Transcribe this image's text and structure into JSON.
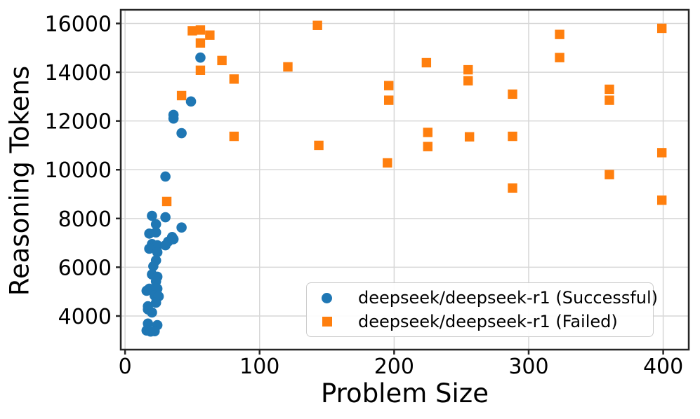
{
  "chart_data": {
    "type": "scatter",
    "title": "",
    "xlabel": "Problem Size",
    "ylabel": "Reasoning Tokens",
    "xlim": [
      -3.2,
      419
    ],
    "ylim": [
      2620,
      16560
    ],
    "x_ticks": [
      0,
      100,
      200,
      300,
      400
    ],
    "y_ticks": [
      4000,
      6000,
      8000,
      10000,
      12000,
      14000,
      16000
    ],
    "grid": true,
    "grid_color": "#d7d7d7",
    "spine_color": "#262626",
    "legend_position": "lower right",
    "series": [
      {
        "name": "deepseek/deepseek-r1 (Successful)",
        "marker": "circle",
        "color": "#1f77b4",
        "points": [
          [
            56,
            14600
          ],
          [
            49,
            12800
          ],
          [
            36,
            12250
          ],
          [
            36,
            12100
          ],
          [
            42,
            11500
          ],
          [
            30,
            9720
          ],
          [
            20,
            8110
          ],
          [
            30,
            8050
          ],
          [
            23,
            7765
          ],
          [
            42,
            7630
          ],
          [
            23,
            7430
          ],
          [
            18,
            7380
          ],
          [
            35,
            7240
          ],
          [
            36,
            7150
          ],
          [
            32,
            7050
          ],
          [
            20,
            6950
          ],
          [
            24,
            6900
          ],
          [
            30,
            6900
          ],
          [
            18,
            6760
          ],
          [
            24,
            6615
          ],
          [
            23,
            6280
          ],
          [
            21,
            6040
          ],
          [
            20,
            5705
          ],
          [
            24,
            5610
          ],
          [
            23,
            5420
          ],
          [
            18,
            5120
          ],
          [
            24,
            5120
          ],
          [
            16,
            5035
          ],
          [
            22,
            4835
          ],
          [
            25,
            4805
          ],
          [
            23,
            4545
          ],
          [
            17,
            4400
          ],
          [
            17,
            4270
          ],
          [
            20,
            4145
          ],
          [
            17,
            3690
          ],
          [
            24,
            3625
          ],
          [
            16,
            3405
          ],
          [
            19,
            3360
          ],
          [
            22,
            3375
          ]
        ]
      },
      {
        "name": "deepseek/deepseek-r1 (Failed)",
        "marker": "square",
        "color": "#ff7f0e",
        "points": [
          [
            50,
            15700
          ],
          [
            56,
            15730
          ],
          [
            63,
            15520
          ],
          [
            56,
            15200
          ],
          [
            72,
            14480
          ],
          [
            56,
            14080
          ],
          [
            81,
            13720
          ],
          [
            42,
            13040
          ],
          [
            81,
            11370
          ],
          [
            31,
            8700
          ],
          [
            121,
            14220
          ],
          [
            143,
            15920
          ],
          [
            144,
            11000
          ],
          [
            195,
            10280
          ],
          [
            196,
            13450
          ],
          [
            196,
            12850
          ],
          [
            224,
            14390
          ],
          [
            225,
            11530
          ],
          [
            225,
            10950
          ],
          [
            255,
            14100
          ],
          [
            255,
            13650
          ],
          [
            256,
            11350
          ],
          [
            288,
            13100
          ],
          [
            288,
            11370
          ],
          [
            288,
            9250
          ],
          [
            323,
            15550
          ],
          [
            323,
            14600
          ],
          [
            360,
            13300
          ],
          [
            360,
            12850
          ],
          [
            360,
            9800
          ],
          [
            399,
            15800
          ],
          [
            399,
            10700
          ],
          [
            399,
            8750
          ]
        ]
      }
    ]
  }
}
